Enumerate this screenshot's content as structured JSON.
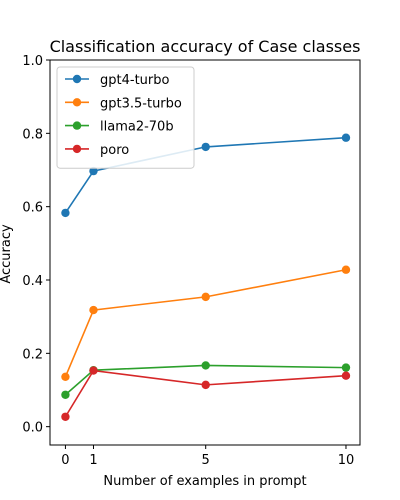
{
  "chart_data": {
    "type": "line",
    "title": "Classification accuracy of Case classes",
    "xlabel": "Number of examples in prompt",
    "ylabel": "Accuracy",
    "x": [
      0,
      1,
      5,
      10
    ],
    "xlim": [
      -0.55,
      10.5
    ],
    "ylim": [
      -0.05,
      1.0
    ],
    "xticks": [
      0,
      1,
      5,
      10
    ],
    "yticks": [
      0.0,
      0.2,
      0.4,
      0.6,
      0.8,
      1.0
    ],
    "xtick_labels": [
      "0",
      "1",
      "5",
      "10"
    ],
    "ytick_labels": [
      "0.0",
      "0.2",
      "0.4",
      "0.6",
      "0.8",
      "1.0"
    ],
    "grid": false,
    "legend_position": "top-left",
    "series": [
      {
        "name": "gpt4-turbo",
        "color": "#1f77b4",
        "values": [
          0.583,
          0.697,
          0.763,
          0.788
        ]
      },
      {
        "name": "gpt3.5-turbo",
        "color": "#ff7f0e",
        "values": [
          0.136,
          0.318,
          0.354,
          0.428
        ]
      },
      {
        "name": "llama2-70b",
        "color": "#2ca02c",
        "values": [
          0.087,
          0.154,
          0.167,
          0.161
        ]
      },
      {
        "name": "poro",
        "color": "#d62728",
        "values": [
          0.027,
          0.153,
          0.114,
          0.139
        ]
      }
    ]
  }
}
